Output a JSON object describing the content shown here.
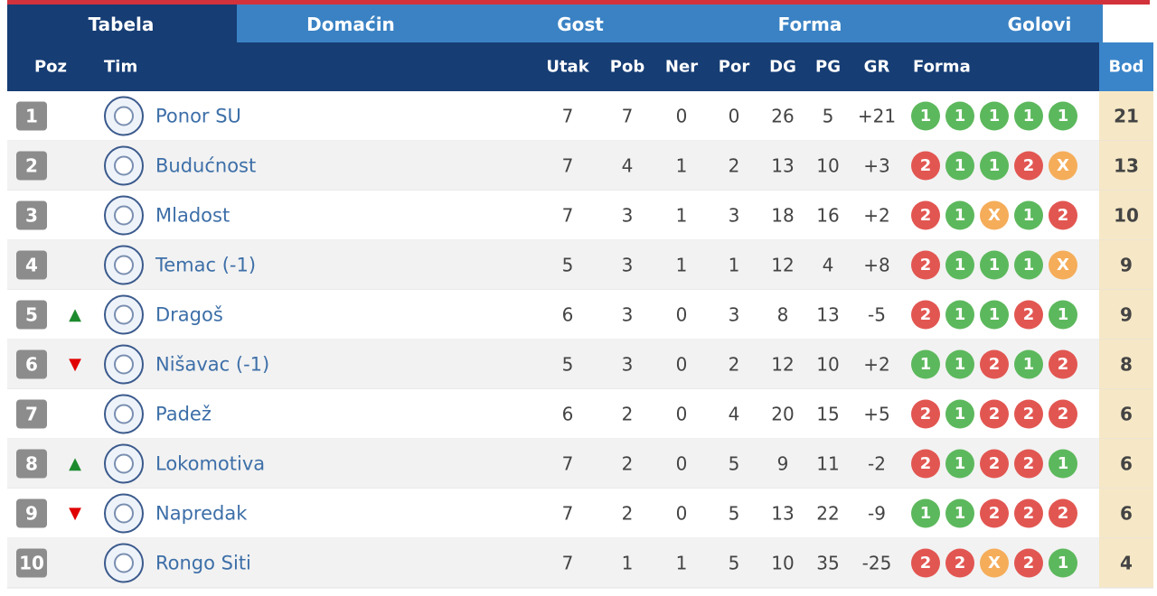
{
  "tabs": [
    "Tabela",
    "Domaćin",
    "Gost",
    "Forma",
    "Golovi"
  ],
  "columns": {
    "pos": "Poz",
    "team": "Tim",
    "played": "Utak",
    "won": "Pob",
    "drawn": "Ner",
    "lost": "Por",
    "gf": "DG",
    "ga": "PG",
    "gd": "GR",
    "form": "Forma",
    "points": "Bod"
  },
  "rows": [
    {
      "pos": 1,
      "trend": null,
      "team": "Ponor SU",
      "played": 7,
      "won": 7,
      "drawn": 0,
      "lost": 0,
      "gf": 26,
      "ga": 5,
      "gd": "+21",
      "form": [
        "1",
        "1",
        "1",
        "1",
        "1"
      ],
      "points": 21
    },
    {
      "pos": 2,
      "trend": null,
      "team": "Budućnost",
      "played": 7,
      "won": 4,
      "drawn": 1,
      "lost": 2,
      "gf": 13,
      "ga": 10,
      "gd": "+3",
      "form": [
        "2",
        "1",
        "1",
        "2",
        "X"
      ],
      "points": 13
    },
    {
      "pos": 3,
      "trend": null,
      "team": "Mladost",
      "played": 7,
      "won": 3,
      "drawn": 1,
      "lost": 3,
      "gf": 18,
      "ga": 16,
      "gd": "+2",
      "form": [
        "2",
        "1",
        "X",
        "1",
        "2"
      ],
      "points": 10
    },
    {
      "pos": 4,
      "trend": null,
      "team": "Temac (-1)",
      "played": 5,
      "won": 3,
      "drawn": 1,
      "lost": 1,
      "gf": 12,
      "ga": 4,
      "gd": "+8",
      "form": [
        "2",
        "1",
        "1",
        "1",
        "X"
      ],
      "points": 9
    },
    {
      "pos": 5,
      "trend": "▲",
      "team": "Dragoš",
      "played": 6,
      "won": 3,
      "drawn": 0,
      "lost": 3,
      "gf": 8,
      "ga": 13,
      "gd": "-5",
      "form": [
        "2",
        "1",
        "1",
        "2",
        "1"
      ],
      "points": 9
    },
    {
      "pos": 6,
      "trend": "▼",
      "team": "Nišavac (-1)",
      "played": 5,
      "won": 3,
      "drawn": 0,
      "lost": 2,
      "gf": 12,
      "ga": 10,
      "gd": "+2",
      "form": [
        "1",
        "1",
        "2",
        "1",
        "2"
      ],
      "points": 8
    },
    {
      "pos": 7,
      "trend": null,
      "team": "Padež",
      "played": 6,
      "won": 2,
      "drawn": 0,
      "lost": 4,
      "gf": 20,
      "ga": 15,
      "gd": "+5",
      "form": [
        "2",
        "1",
        "2",
        "2",
        "2"
      ],
      "points": 6
    },
    {
      "pos": 8,
      "trend": "▲",
      "team": "Lokomotiva",
      "played": 7,
      "won": 2,
      "drawn": 0,
      "lost": 5,
      "gf": 9,
      "ga": 11,
      "gd": "-2",
      "form": [
        "2",
        "1",
        "2",
        "2",
        "1"
      ],
      "points": 6
    },
    {
      "pos": 9,
      "trend": "▼",
      "team": "Napredak",
      "played": 7,
      "won": 2,
      "drawn": 0,
      "lost": 5,
      "gf": 13,
      "ga": 22,
      "gd": "-9",
      "form": [
        "1",
        "1",
        "2",
        "2",
        "2"
      ],
      "points": 6
    },
    {
      "pos": 10,
      "trend": null,
      "team": "Rongo Siti",
      "played": 7,
      "won": 1,
      "drawn": 1,
      "lost": 5,
      "gf": 10,
      "ga": 35,
      "gd": "-25",
      "form": [
        "2",
        "2",
        "X",
        "2",
        "1"
      ],
      "points": 4
    }
  ]
}
